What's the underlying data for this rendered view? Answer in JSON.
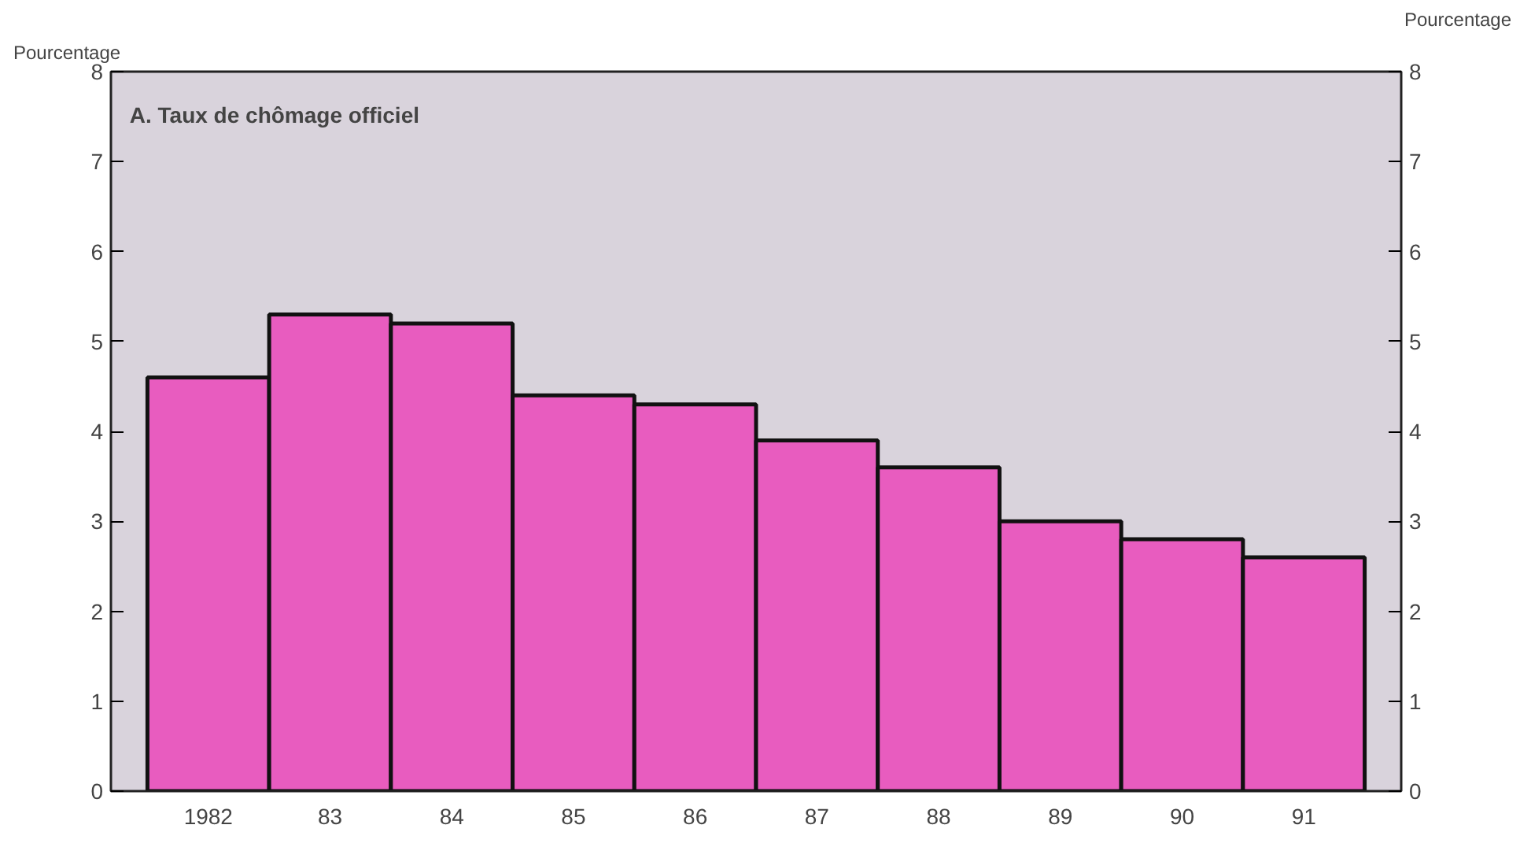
{
  "chart_data": {
    "type": "bar",
    "title": "A.   Taux de chômage officiel",
    "ylabel": "Pourcentage",
    "y2label": "Pourcentage",
    "categories": [
      "1982",
      "83",
      "84",
      "85",
      "86",
      "87",
      "88",
      "89",
      "90",
      "91"
    ],
    "values": [
      4.6,
      5.3,
      5.2,
      4.4,
      4.3,
      3.9,
      3.6,
      3.0,
      2.8,
      2.6
    ],
    "color": "#e85cbf",
    "ylim": [
      0,
      8
    ],
    "yticks": [
      0,
      1,
      2,
      3,
      4,
      5,
      6,
      7,
      8
    ],
    "y2lim": [
      0,
      8
    ],
    "y2ticks": [
      0,
      1,
      2,
      3,
      4,
      5,
      6,
      7,
      8
    ],
    "grid": false
  }
}
